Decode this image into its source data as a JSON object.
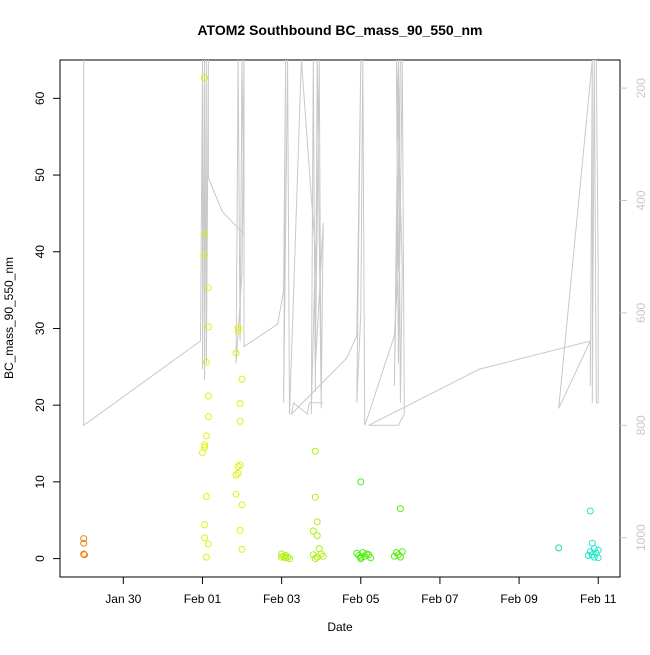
{
  "chart_data": {
    "type": "scatter",
    "title": "ATOM2 Southbound BC_mass_90_550_nm",
    "xlabel": "Date",
    "ylabel": "BC_mass_90_550_nm",
    "x_ticks": [
      "Jan 30",
      "Feb 01",
      "Feb 03",
      "Feb 05",
      "Feb 07",
      "Feb 09",
      "Feb 11"
    ],
    "x_tick_values": [
      -1,
      1,
      3,
      5,
      7,
      9,
      11
    ],
    "xlim": [
      -2.6,
      11.55
    ],
    "ylim": [
      -2.4,
      65
    ],
    "y_ticks": [
      0,
      10,
      20,
      30,
      40,
      50,
      60
    ],
    "y2_ticks": [
      200,
      400,
      600,
      800,
      1000
    ],
    "y2lim": [
      1070,
      150
    ],
    "grid": false,
    "point_series": [
      {
        "color": "#e8870a",
        "points": [
          [
            -2.0,
            2.6
          ],
          [
            -2.0,
            2.0
          ],
          [
            -2.0,
            0.6
          ],
          [
            -1.98,
            0.5
          ]
        ]
      },
      {
        "color": "#e0f20c",
        "points": [
          [
            1.05,
            62.7
          ],
          [
            1.05,
            42.3
          ],
          [
            1.05,
            39.6
          ],
          [
            1.15,
            35.3
          ],
          [
            1.15,
            30.2
          ],
          [
            1.1,
            25.6
          ],
          [
            1.15,
            21.2
          ],
          [
            1.15,
            18.5
          ],
          [
            1.1,
            16.0
          ],
          [
            1.05,
            14.8
          ],
          [
            1.05,
            14.5
          ],
          [
            1.0,
            13.8
          ],
          [
            1.1,
            8.1
          ],
          [
            1.05,
            4.4
          ],
          [
            1.05,
            2.7
          ],
          [
            1.15,
            1.9
          ],
          [
            1.1,
            0.2
          ],
          [
            1.9,
            30.1
          ],
          [
            1.9,
            29.7
          ],
          [
            1.85,
            26.8
          ],
          [
            2.0,
            23.4
          ],
          [
            1.95,
            20.2
          ],
          [
            1.95,
            17.9
          ],
          [
            1.95,
            12.2
          ],
          [
            1.9,
            12.0
          ],
          [
            1.9,
            11.1
          ],
          [
            1.85,
            10.9
          ],
          [
            1.85,
            8.4
          ],
          [
            2.0,
            7.0
          ],
          [
            1.95,
            3.7
          ],
          [
            2.0,
            1.2
          ]
        ]
      },
      {
        "color": "#b0f014",
        "points": [
          [
            3.0,
            0.6
          ],
          [
            3.05,
            0.3
          ],
          [
            3.1,
            0.1
          ],
          [
            3.15,
            0.2
          ],
          [
            3.2,
            0.0
          ],
          [
            3.0,
            0.2
          ],
          [
            3.1,
            0.4
          ],
          [
            3.85,
            14.0
          ],
          [
            3.85,
            8.0
          ],
          [
            3.9,
            4.8
          ],
          [
            3.8,
            3.6
          ],
          [
            3.9,
            3.0
          ],
          [
            3.95,
            1.3
          ],
          [
            3.8,
            0.5
          ],
          [
            3.9,
            0.2
          ],
          [
            4.0,
            0.6
          ],
          [
            4.05,
            0.3
          ],
          [
            3.85,
            0.0
          ]
        ]
      },
      {
        "color": "#4ef00c",
        "points": [
          [
            5.0,
            10.0
          ],
          [
            4.9,
            0.7
          ],
          [
            4.95,
            0.4
          ],
          [
            5.0,
            0.2
          ],
          [
            5.05,
            0.8
          ],
          [
            5.1,
            0.3
          ],
          [
            5.15,
            0.6
          ],
          [
            5.2,
            0.5
          ],
          [
            5.25,
            0.1
          ],
          [
            5.0,
            0.0
          ],
          [
            6.0,
            6.5
          ],
          [
            5.9,
            0.8
          ],
          [
            5.95,
            0.5
          ],
          [
            6.0,
            0.2
          ],
          [
            6.05,
            0.9
          ],
          [
            5.85,
            0.3
          ]
        ]
      },
      {
        "color": "#1ee08a",
        "points": [
          [
            10.0,
            1.4
          ]
        ]
      },
      {
        "color": "#22e8c8",
        "points": [
          [
            10.8,
            6.2
          ],
          [
            10.85,
            2.0
          ],
          [
            10.9,
            1.3
          ],
          [
            10.8,
            0.9
          ],
          [
            10.85,
            0.5
          ],
          [
            10.9,
            0.2
          ],
          [
            10.95,
            0.7
          ],
          [
            11.0,
            1.1
          ],
          [
            10.75,
            0.4
          ],
          [
            11.0,
            0.1
          ]
        ]
      }
    ],
    "altitude_series": {
      "color": "#c8c8c8",
      "axis": "right",
      "points": [
        [
          -2.0,
          150
        ],
        [
          -2.0,
          800
        ],
        [
          0.95,
          650
        ],
        [
          1.0,
          150
        ],
        [
          1.0,
          700
        ],
        [
          1.05,
          150
        ],
        [
          1.05,
          720
        ],
        [
          1.1,
          150
        ],
        [
          1.1,
          690
        ],
        [
          1.15,
          150
        ],
        [
          1.15,
          360
        ],
        [
          1.5,
          420
        ],
        [
          2.05,
          460
        ],
        [
          2.0,
          150
        ],
        [
          1.95,
          650
        ],
        [
          1.9,
          150
        ],
        [
          1.85,
          690
        ],
        [
          2.0,
          530
        ],
        [
          2.05,
          150
        ],
        [
          2.05,
          660
        ],
        [
          2.9,
          620
        ],
        [
          3.05,
          560
        ],
        [
          3.1,
          150
        ],
        [
          3.05,
          760
        ],
        [
          3.15,
          150
        ],
        [
          3.2,
          780
        ],
        [
          3.5,
          150
        ],
        [
          3.85,
          490
        ],
        [
          3.75,
          780
        ],
        [
          3.8,
          150
        ],
        [
          3.85,
          740
        ],
        [
          3.9,
          150
        ],
        [
          4.0,
          770
        ],
        [
          3.95,
          150
        ],
        [
          3.85,
          700
        ],
        [
          4.05,
          440
        ],
        [
          4.0,
          760
        ],
        [
          4.05,
          760
        ],
        [
          3.7,
          760
        ],
        [
          3.65,
          780
        ],
        [
          3.3,
          760
        ],
        [
          3.25,
          780
        ],
        [
          4.65,
          680
        ],
        [
          4.9,
          640
        ],
        [
          5.0,
          150
        ],
        [
          4.9,
          760
        ],
        [
          5.0,
          600
        ],
        [
          5.05,
          150
        ],
        [
          5.1,
          800
        ],
        [
          5.2,
          780
        ],
        [
          5.85,
          640
        ],
        [
          5.95,
          520
        ],
        [
          6.0,
          150
        ],
        [
          5.85,
          730
        ],
        [
          5.95,
          150
        ],
        [
          6.0,
          760
        ],
        [
          6.05,
          520
        ],
        [
          5.9,
          150
        ],
        [
          5.95,
          690
        ],
        [
          6.05,
          150
        ],
        [
          6.1,
          780
        ],
        [
          5.95,
          800
        ],
        [
          5.2,
          800
        ],
        [
          8.0,
          700
        ],
        [
          10.8,
          650
        ],
        [
          10.8,
          730
        ],
        [
          10.85,
          150
        ],
        [
          10.85,
          760
        ],
        [
          10.9,
          150
        ],
        [
          10.95,
          760
        ],
        [
          11.0,
          760
        ],
        [
          11.0,
          520
        ],
        [
          10.95,
          150
        ],
        [
          10.85,
          150
        ],
        [
          10.0,
          770
        ],
        [
          10.8,
          650
        ]
      ]
    }
  }
}
